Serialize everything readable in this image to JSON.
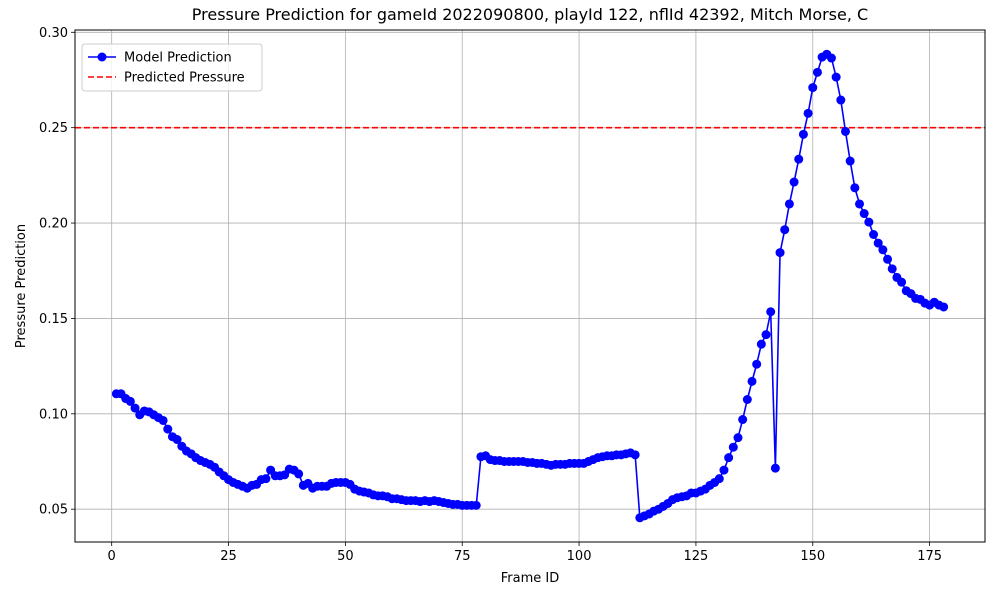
{
  "chart_data": {
    "type": "line",
    "title": "Pressure Prediction for gameId 2022090800, playId 122, nflId 42392, Mitch Morse, C",
    "xlabel": "Frame ID",
    "ylabel": "Pressure Prediction",
    "xlim": [
      -7.85,
      186.85
    ],
    "ylim": [
      0.0328,
      0.3012
    ],
    "xticks": [
      0,
      25,
      50,
      75,
      100,
      125,
      150,
      175
    ],
    "yticks": [
      0.05,
      0.1,
      0.15,
      0.2,
      0.25,
      0.3
    ],
    "ytick_labels": [
      "0.05",
      "0.10",
      "0.15",
      "0.20",
      "0.25",
      "0.30"
    ],
    "grid": true,
    "legend_position": "top-left",
    "colors": {
      "line": "#0000ff",
      "threshold": "#ff0000",
      "grid": "#b0b0b0"
    },
    "series": [
      {
        "name": "Model Prediction",
        "style": "line-with-markers",
        "x": [
          1,
          2,
          3,
          4,
          5,
          6,
          7,
          8,
          9,
          10,
          11,
          12,
          13,
          14,
          15,
          16,
          17,
          18,
          19,
          20,
          21,
          22,
          23,
          24,
          25,
          26,
          27,
          28,
          29,
          30,
          31,
          32,
          33,
          34,
          35,
          36,
          37,
          38,
          39,
          40,
          41,
          42,
          43,
          44,
          45,
          46,
          47,
          48,
          49,
          50,
          51,
          52,
          53,
          54,
          55,
          56,
          57,
          58,
          59,
          60,
          61,
          62,
          63,
          64,
          65,
          66,
          67,
          68,
          69,
          70,
          71,
          72,
          73,
          74,
          75,
          76,
          77,
          78,
          79,
          80,
          81,
          82,
          83,
          84,
          85,
          86,
          87,
          88,
          89,
          90,
          91,
          92,
          93,
          94,
          95,
          96,
          97,
          98,
          99,
          100,
          101,
          102,
          103,
          104,
          105,
          106,
          107,
          108,
          109,
          110,
          111,
          112,
          113,
          114,
          115,
          116,
          117,
          118,
          119,
          120,
          121,
          122,
          123,
          124,
          125,
          126,
          127,
          128,
          129,
          130,
          131,
          132,
          133,
          134,
          135,
          136,
          137,
          138,
          139,
          140,
          141,
          142,
          143,
          144,
          145,
          146,
          147,
          148,
          149,
          150,
          151,
          152,
          153,
          154,
          155,
          156,
          157,
          158,
          159,
          160,
          161,
          162,
          163,
          164,
          165,
          166,
          167,
          168,
          169,
          170,
          171,
          172,
          173,
          174,
          175,
          176,
          177,
          178
        ],
        "y": [
          0.1105,
          0.1105,
          0.108,
          0.1065,
          0.103,
          0.0995,
          0.1015,
          0.101,
          0.0995,
          0.098,
          0.0965,
          0.092,
          0.088,
          0.0865,
          0.083,
          0.0805,
          0.079,
          0.077,
          0.0755,
          0.0745,
          0.0735,
          0.072,
          0.0695,
          0.0675,
          0.0655,
          0.064,
          0.063,
          0.062,
          0.061,
          0.0625,
          0.063,
          0.0655,
          0.066,
          0.0705,
          0.0675,
          0.0675,
          0.068,
          0.071,
          0.0705,
          0.0685,
          0.0625,
          0.0635,
          0.061,
          0.062,
          0.062,
          0.062,
          0.0635,
          0.064,
          0.064,
          0.064,
          0.063,
          0.0605,
          0.0595,
          0.059,
          0.0585,
          0.0575,
          0.057,
          0.057,
          0.0565,
          0.0555,
          0.0555,
          0.055,
          0.0545,
          0.0545,
          0.0545,
          0.054,
          0.0545,
          0.054,
          0.0545,
          0.054,
          0.0535,
          0.053,
          0.0525,
          0.0525,
          0.052,
          0.052,
          0.052,
          0.052,
          0.0775,
          0.078,
          0.076,
          0.0755,
          0.0755,
          0.075,
          0.075,
          0.075,
          0.075,
          0.075,
          0.0745,
          0.0745,
          0.074,
          0.074,
          0.0735,
          0.073,
          0.0735,
          0.0735,
          0.0735,
          0.074,
          0.074,
          0.074,
          0.074,
          0.075,
          0.076,
          0.077,
          0.0775,
          0.078,
          0.078,
          0.0785,
          0.0785,
          0.079,
          0.0795,
          0.0785,
          0.0455,
          0.0465,
          0.0475,
          0.049,
          0.05,
          0.0515,
          0.053,
          0.055,
          0.056,
          0.0565,
          0.057,
          0.0585,
          0.0585,
          0.0595,
          0.0605,
          0.0625,
          0.064,
          0.066,
          0.0705,
          0.077,
          0.0825,
          0.0875,
          0.097,
          0.1075,
          0.117,
          0.126,
          0.1365,
          0.1415,
          0.1535,
          0.0715,
          0.1845,
          0.1965,
          0.21,
          0.2215,
          0.2335,
          0.2465,
          0.2575,
          0.271,
          0.279,
          0.287,
          0.2885,
          0.2865,
          0.2765,
          0.2645,
          0.248,
          0.2325,
          0.2185,
          0.21,
          0.205,
          0.2005,
          0.194,
          0.1895,
          0.186,
          0.181,
          0.176,
          0.1715,
          0.169,
          0.1645,
          0.163,
          0.1605,
          0.16,
          0.158,
          0.157,
          0.1585,
          0.157,
          0.156
        ]
      },
      {
        "name": "Predicted Pressure",
        "style": "dashed-horizontal-line",
        "y": 0.25
      }
    ]
  }
}
